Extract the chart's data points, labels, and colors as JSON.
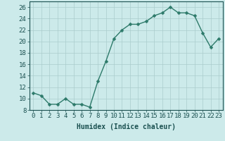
{
  "x": [
    0,
    1,
    2,
    3,
    4,
    5,
    6,
    7,
    8,
    9,
    10,
    11,
    12,
    13,
    14,
    15,
    16,
    17,
    18,
    19,
    20,
    21,
    22,
    23
  ],
  "y": [
    11,
    10.5,
    9,
    9,
    10,
    9,
    9,
    8.5,
    13,
    16.5,
    20.5,
    22,
    23,
    23,
    23.5,
    24.5,
    25,
    26,
    25,
    25,
    24.5,
    21.5,
    19,
    20.5
  ],
  "line_color": "#2d7a6a",
  "marker_color": "#2d7a6a",
  "bg_color": "#cceaea",
  "grid_color_major": "#aacccc",
  "grid_color_minor": "#bbdddd",
  "xlabel": "Humidex (Indice chaleur)",
  "ylim": [
    8,
    27
  ],
  "xlim": [
    -0.5,
    23.5
  ],
  "yticks": [
    8,
    10,
    12,
    14,
    16,
    18,
    20,
    22,
    24,
    26
  ],
  "xticks": [
    0,
    1,
    2,
    3,
    4,
    5,
    6,
    7,
    8,
    9,
    10,
    11,
    12,
    13,
    14,
    15,
    16,
    17,
    18,
    19,
    20,
    21,
    22,
    23
  ],
  "font_color": "#1a5050",
  "font_size_label": 7,
  "font_size_tick": 6.5,
  "line_width": 1.0,
  "marker_size": 2.5
}
